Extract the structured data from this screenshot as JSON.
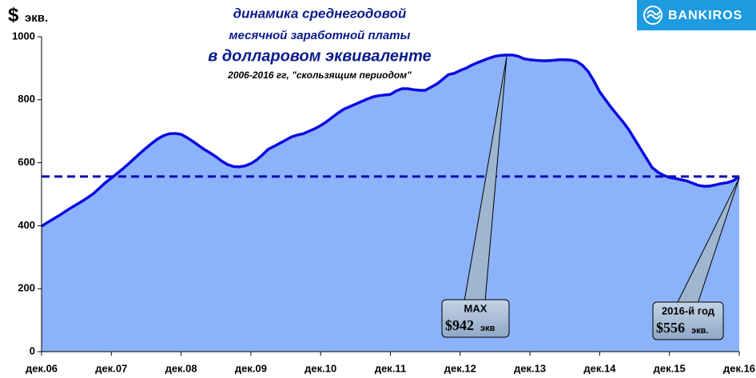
{
  "chart_data": {
    "type": "area",
    "title": "динамика среднегодовой",
    "subtitle_lines": [
      "месячной заработной платы",
      "в долларовом эквиваленте",
      "2006-2016 гг, \"скользящим периодом\""
    ],
    "y_label_symbol": "$",
    "y_label_unit": "экв.",
    "logo": "BANKIROS",
    "categories": [
      "дек.06",
      null,
      null,
      null,
      null,
      null,
      null,
      null,
      null,
      null,
      null,
      null,
      "дек.07",
      null,
      null,
      null,
      null,
      null,
      null,
      null,
      null,
      null,
      null,
      null,
      "дек.08",
      null,
      null,
      null,
      null,
      null,
      null,
      null,
      null,
      null,
      null,
      null,
      "дек.09",
      null,
      null,
      null,
      null,
      null,
      null,
      null,
      null,
      null,
      null,
      null,
      "дек.10",
      null,
      null,
      null,
      null,
      null,
      null,
      null,
      null,
      null,
      null,
      null,
      "дек.11",
      null,
      null,
      null,
      null,
      null,
      null,
      null,
      null,
      null,
      null,
      null,
      "дек.12",
      null,
      null,
      null,
      null,
      null,
      null,
      null,
      null,
      null,
      null,
      null,
      "дек.13",
      null,
      null,
      null,
      null,
      null,
      null,
      null,
      null,
      null,
      null,
      null,
      "дек.14",
      null,
      null,
      null,
      null,
      null,
      null,
      null,
      null,
      null,
      null,
      null,
      "дек.15",
      null,
      null,
      null,
      null,
      null,
      null,
      null,
      null,
      null,
      null,
      null,
      "дек.16"
    ],
    "values": [
      398,
      410,
      421,
      432,
      444,
      456,
      467,
      478,
      490,
      503,
      520,
      537,
      551,
      566,
      581,
      597,
      614,
      631,
      647,
      662,
      676,
      686,
      692,
      693,
      690,
      680,
      668,
      655,
      642,
      631,
      619,
      605,
      594,
      588,
      587,
      590,
      597,
      609,
      625,
      643,
      652,
      662,
      672,
      682,
      688,
      692,
      700,
      708,
      718,
      730,
      744,
      758,
      770,
      778,
      786,
      794,
      802,
      809,
      813,
      815,
      817,
      828,
      835,
      835,
      832,
      830,
      830,
      840,
      850,
      865,
      880,
      884,
      893,
      900,
      910,
      918,
      925,
      932,
      938,
      941,
      942,
      942,
      938,
      930,
      927,
      925,
      924,
      924,
      925,
      927,
      927,
      926,
      922,
      910,
      890,
      860,
      825,
      800,
      775,
      752,
      730,
      705,
      675,
      645,
      615,
      585,
      570,
      560,
      553,
      550,
      546,
      542,
      535,
      528,
      525,
      526,
      530,
      534,
      537,
      543,
      556
    ],
    "color": "#0a0ae0",
    "fill": "#8cb2fb",
    "reference_line": 556,
    "annotations": [
      {
        "label": "MAX",
        "value_text": "$942",
        "unit": "экв"
      },
      {
        "label": "2016-й год",
        "value_text": "$556",
        "unit": "экв."
      }
    ],
    "ylim": [
      0,
      1000
    ],
    "yticks": [
      0,
      200,
      400,
      600,
      800,
      1000
    ],
    "grid": false
  }
}
